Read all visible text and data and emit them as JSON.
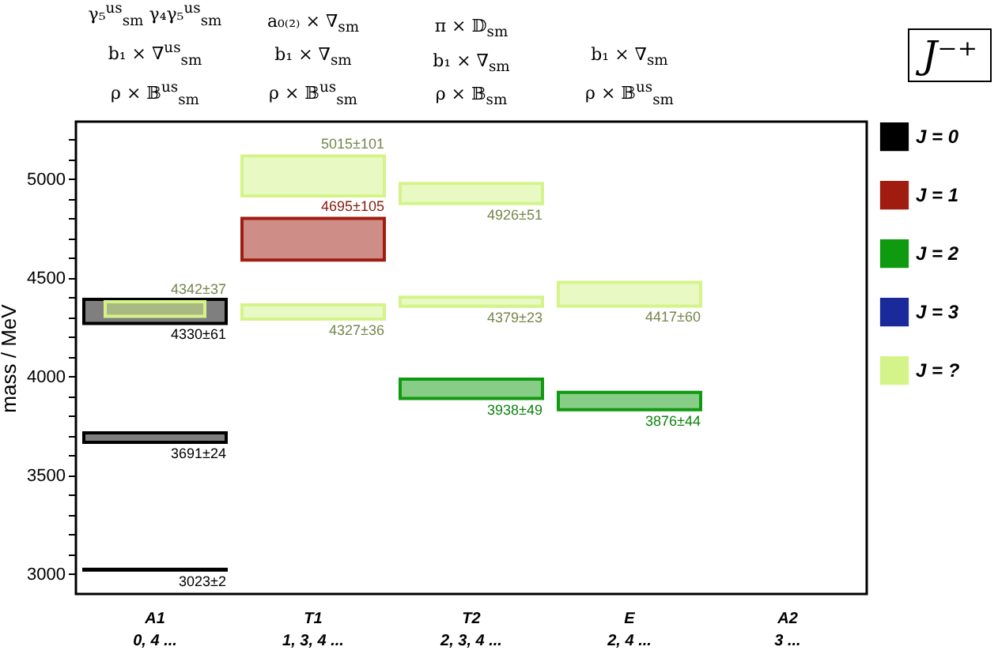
{
  "chart_data": {
    "type": "bar",
    "title": "J⁻⁺",
    "ylabel": "mass / MeV",
    "categories": [
      "A1\n0, 4 ...",
      "T1\n1, 3, 4 ...",
      "T2\n2, 3, 4 ...",
      "E\n2, 4 ...",
      "A2\n3 ..."
    ],
    "annotations": [
      "γ₅$^{us}$$_{sm}$   γ₄γ₅$^{us}$$_{sm}$\nb₁ × ∇$^{us}$$_{sm}$\nρ × 𝔹$^{us}$$_{sm}$",
      "a₀₍₂₎ × ∇$_{sm}$\nb₁ × ∇$_{sm}$\nρ × 𝔹$^{us}$$_{sm}$",
      "π × 𝔻$_{sm}$\nb₁ × ∇$_{sm}$\nρ × 𝔹$_{sm}$",
      "b₁ × ∇$_{sm}$\nρ × 𝔹$^{us}$$_{sm}$",
      {
        "text": "3023±2",
        "x": "A1\n0, 4 ...",
        "y": 3021
      },
      {
        "text": "3691±24",
        "x": "A1\n0, 4 ...",
        "y": 3667
      },
      {
        "text": "4330±61",
        "x": "A1\n0, 4 ...",
        "y": 4269
      },
      {
        "text": "4342±37",
        "x": "A1\n0, 4 ...",
        "y": 4379
      },
      {
        "text": "4695±105",
        "x": "T1\n1, 3, 4 ...",
        "y": 4800
      },
      {
        "text": "5015±101",
        "x": "T1\n1, 3, 4 ...",
        "y": 5116
      },
      {
        "text": "4327±36",
        "x": "T1\n1, 3, 4 ...",
        "y": 4291
      },
      {
        "text": "4926±51",
        "x": "T2\n2, 3, 4 ...",
        "y": 4875
      },
      {
        "text": "4379±23",
        "x": "T2\n2, 3, 4 ...",
        "y": 4356
      },
      {
        "text": "3938±49",
        "x": "T2\n2, 3, 4 ...",
        "y": 3889
      },
      {
        "text": "4417±60",
        "x": "E\n2, 4 ...",
        "y": 4357
      },
      {
        "text": "3876±44",
        "x": "E\n2, 4 ...",
        "y": 3832
      }
    ],
    "series": [
      {
        "name": "J = 0",
        "color": "#000000",
        "base": [
          3021,
          null,
          null,
          null,
          null
        ],
        "values": [
          4,
          null,
          null,
          null,
          null
        ]
      },
      {
        "color": "#000000",
        "base": [
          3667,
          null,
          null,
          null,
          null
        ],
        "values": [
          48,
          null,
          null,
          null,
          null
        ]
      },
      {
        "color": "#000000",
        "base": [
          4269,
          null,
          null,
          null,
          null
        ],
        "values": [
          122,
          null,
          null,
          null,
          null
        ]
      },
      {
        "name": "J = 1",
        "color": "#a01c10",
        "base": [
          null,
          4590,
          null,
          null,
          null
        ],
        "values": [
          null,
          210,
          null,
          null,
          null
        ]
      },
      {
        "name": "J = 2",
        "color": "#109a10",
        "base": [
          null,
          null,
          3889,
          3832,
          null
        ],
        "values": [
          null,
          null,
          98,
          88,
          null
        ]
      },
      {
        "name": "J = 3",
        "color": "#1a2a9a",
        "base": [
          null,
          null,
          null,
          null,
          null
        ],
        "values": [
          null,
          null,
          null,
          null,
          null
        ]
      },
      {
        "name": "J = ?",
        "color": "#d4f48a",
        "base": [
          4305,
          4291,
          4356,
          4357,
          null
        ],
        "values": [
          74,
          72,
          46,
          120,
          null
        ]
      },
      {
        "color": "#d4f48a",
        "base": [
          null,
          4914,
          4875,
          null,
          null
        ],
        "values": [
          null,
          202,
          102,
          null,
          null
        ]
      }
    ],
    "ylim": [
      2900,
      5290
    ],
    "yticks": [
      3000,
      {
        "value": 3100,
        "label": null
      },
      {
        "value": 3200,
        "label": null
      },
      {
        "value": 3300,
        "label": null
      },
      {
        "value": 3400,
        "label": null
      },
      3500,
      {
        "value": 3600,
        "label": null
      },
      {
        "value": 3700,
        "label": null
      },
      {
        "value": 3800,
        "label": null
      },
      {
        "value": 3900,
        "label": null
      },
      4000,
      {
        "value": 4100,
        "label": null
      },
      {
        "value": 4200,
        "label": null
      },
      {
        "value": 4300,
        "label": null
      },
      {
        "value": 4400,
        "label": null
      },
      4500,
      {
        "value": 4600,
        "label": null
      },
      {
        "value": 4700,
        "label": null
      },
      {
        "value": 4800,
        "label": null
      },
      {
        "value": 4900,
        "label": null
      },
      5000,
      {
        "value": 5100,
        "label": null
      },
      {
        "value": 5200,
        "label": null
      }
    ],
    "legend": "right"
  }
}
